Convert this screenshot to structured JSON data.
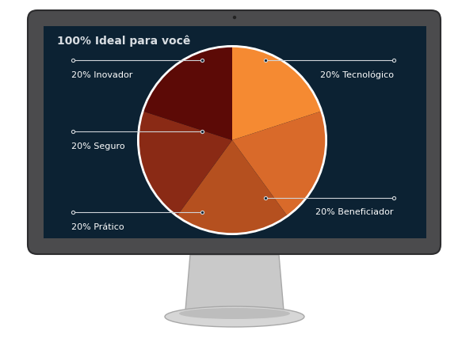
{
  "chart_data": {
    "type": "pie",
    "title": "100% Ideal para você",
    "categories": [
      "20% Tecnológico",
      "20% Beneficiador",
      "20% Prático",
      "20% Seguro",
      "20% Inovador"
    ],
    "values": [
      20,
      20,
      20,
      20,
      20
    ],
    "colors": [
      "#f58a32",
      "#d96a2a",
      "#b5501f",
      "#8a2a15",
      "#5c0a06"
    ],
    "data_labels": false
  }
}
